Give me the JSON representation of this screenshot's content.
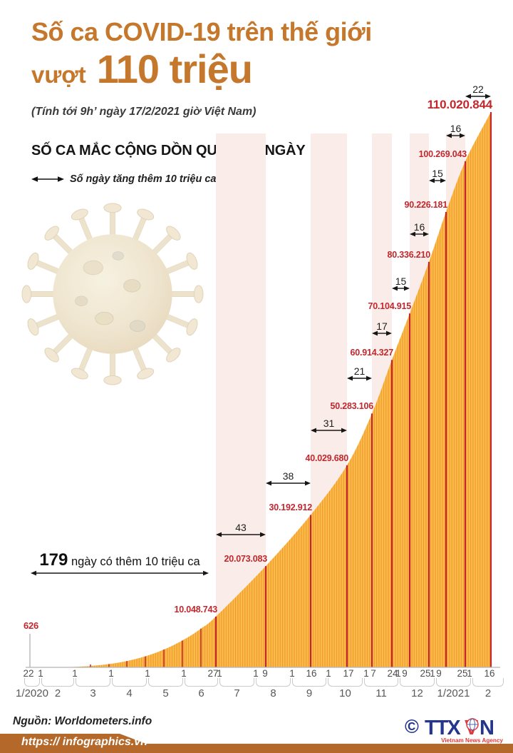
{
  "header": {
    "title_line1": "Số ca COVID-19 trên thế giới",
    "title_word": "vượt",
    "title_number": "110 triệu",
    "subtitle": "(Tính tới 9h’ ngày 17/2/2021 giờ Việt Nam)"
  },
  "chart_data": {
    "type": "area",
    "title": "SỐ CA MẮC CỘNG DỒN QUA CÁC NGÀY",
    "legend": "Số ngày tăng thêm 10 triệu ca",
    "note": {
      "number": "179",
      "text": " ngày có thêm 10 triệu ca"
    },
    "start_point": {
      "label": "626",
      "value": 626
    },
    "milestones": [
      {
        "label": "10.048.743",
        "value": 10048743,
        "interval_days": "179"
      },
      {
        "label": "20.073.083",
        "value": 20073083,
        "interval_days": "43"
      },
      {
        "label": "30.192.912",
        "value": 30192912,
        "interval_days": "38"
      },
      {
        "label": "40.029.680",
        "value": 40029680,
        "interval_days": "31"
      },
      {
        "label": "50.283.106",
        "value": 50283106,
        "interval_days": "21"
      },
      {
        "label": "60.914.327",
        "value": 60914327,
        "interval_days": "17"
      },
      {
        "label": "70.104.915",
        "value": 70104915,
        "interval_days": "15"
      },
      {
        "label": "80.336.210",
        "value": 80336210,
        "interval_days": "16"
      },
      {
        "label": "90.226.181",
        "value": 90226181,
        "interval_days": "15"
      },
      {
        "label": "100.269.043",
        "value": 100269043,
        "interval_days": "16"
      },
      {
        "label": "110.020.844",
        "value": 110020844,
        "interval_days": "22"
      }
    ],
    "x_axis": {
      "day_ticks": [
        "22",
        "1",
        "1",
        "1",
        "1",
        "1",
        "27",
        "1",
        "1",
        "9",
        "1",
        "16",
        "1",
        "17",
        "1",
        "7",
        "24",
        "1",
        "9",
        "25",
        "1",
        "9",
        "25",
        "1",
        "16"
      ],
      "months": [
        "1/2020",
        "2",
        "3",
        "4",
        "5",
        "6",
        "7",
        "8",
        "9",
        "10",
        "11",
        "12",
        "1/2021",
        "2"
      ]
    },
    "ylim": [
      0,
      110020844
    ],
    "grid": "off",
    "colors": {
      "bar_light": "#FBBC4B",
      "bar_dark": "#F0992B",
      "milestone_line": "#C1272D",
      "label_red": "#C1272D",
      "band_pink": "#FAEDE9",
      "accent_orange": "#C5772B",
      "footer_band": "#B4692B"
    }
  },
  "footer": {
    "source": "Nguồn: Worldometers.info",
    "url": "https:// infographics.vn",
    "copyright": "©",
    "agency_t1": "TTX",
    "agency_v": "V",
    "agency_n": "N",
    "agency_sub": "Vietnam News Agency"
  }
}
